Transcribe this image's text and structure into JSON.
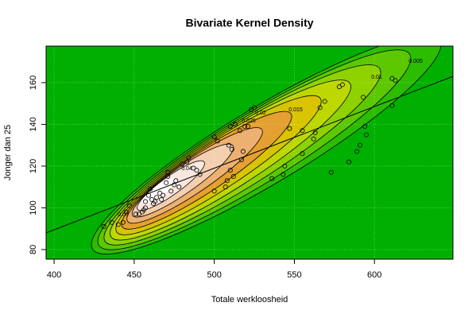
{
  "chart_data": {
    "type": "scatter",
    "title": "Bivariate Kernel Density",
    "x_label": "Totale werkloosheid",
    "y_label": "Jonger dan 25",
    "x": [
      431,
      436,
      440,
      443,
      445,
      447,
      451,
      453,
      455,
      456,
      457,
      457,
      459,
      460,
      461,
      462,
      463,
      464,
      466,
      467,
      468,
      470,
      471,
      471,
      473,
      475,
      476,
      478,
      480,
      483,
      484,
      487,
      489,
      491,
      500,
      500,
      502,
      507,
      508,
      509,
      510,
      510,
      511,
      512,
      513,
      516,
      517,
      518,
      519,
      521,
      523,
      525,
      536,
      543,
      544,
      547,
      555,
      555,
      562,
      563,
      566,
      569,
      573,
      578,
      580,
      584,
      589,
      591,
      593,
      594,
      595,
      611,
      611,
      613
    ],
    "y": [
      91,
      93,
      92,
      93,
      98,
      101,
      97,
      97,
      98,
      99,
      100,
      103,
      106,
      109,
      104,
      102,
      103,
      105,
      107,
      104,
      106,
      112,
      115,
      117,
      108,
      111,
      113,
      110,
      121,
      122,
      124,
      119,
      118,
      116,
      108,
      134,
      132,
      110,
      113,
      130,
      139,
      118,
      128,
      115,
      140,
      137,
      123,
      127,
      139,
      139,
      147,
      148,
      114,
      116,
      120,
      138,
      126,
      137,
      133,
      136,
      148,
      151,
      117,
      158,
      159,
      122,
      127,
      130,
      153,
      139,
      135,
      149,
      162,
      161
    ],
    "regression": {
      "x": [
        395,
        649
      ],
      "y": [
        88,
        163
      ]
    },
    "contour_labels": [
      "0.005",
      "0.01",
      "0.015",
      "0.02",
      "0.025",
      "0.03",
      "0.04"
    ],
    "xlim": [
      395,
      649
    ],
    "ylim": [
      75.4,
      177.5
    ],
    "xticks": [
      400,
      450,
      500,
      550,
      600
    ],
    "yticks": [
      80,
      100,
      120,
      140,
      160
    ],
    "grid": true,
    "point_color": "#000000",
    "line_color": "#000000"
  }
}
